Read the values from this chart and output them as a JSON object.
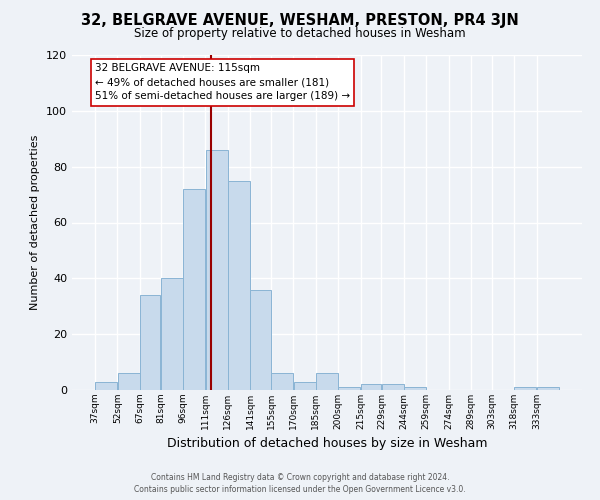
{
  "title": "32, BELGRAVE AVENUE, WESHAM, PRESTON, PR4 3JN",
  "subtitle": "Size of property relative to detached houses in Wesham",
  "xlabel": "Distribution of detached houses by size in Wesham",
  "ylabel": "Number of detached properties",
  "bar_color": "#c8daec",
  "bar_edge_color": "#8ab4d4",
  "background_color": "#eef2f7",
  "grid_color": "#ffffff",
  "vline_x": 115,
  "vline_color": "#990000",
  "categories": [
    "37sqm",
    "52sqm",
    "67sqm",
    "81sqm",
    "96sqm",
    "111sqm",
    "126sqm",
    "141sqm",
    "155sqm",
    "170sqm",
    "185sqm",
    "200sqm",
    "215sqm",
    "229sqm",
    "244sqm",
    "259sqm",
    "274sqm",
    "289sqm",
    "303sqm",
    "318sqm",
    "333sqm"
  ],
  "bin_edges": [
    37,
    52,
    67,
    81,
    96,
    111,
    126,
    141,
    155,
    170,
    185,
    200,
    215,
    229,
    244,
    259,
    274,
    289,
    303,
    318,
    333,
    348
  ],
  "values": [
    3,
    6,
    34,
    40,
    72,
    86,
    75,
    36,
    6,
    3,
    6,
    1,
    2,
    2,
    1,
    0,
    0,
    0,
    0,
    1,
    1
  ],
  "ylim": [
    0,
    120
  ],
  "yticks": [
    0,
    20,
    40,
    60,
    80,
    100,
    120
  ],
  "annotation_title": "32 BELGRAVE AVENUE: 115sqm",
  "annotation_line1": "← 49% of detached houses are smaller (181)",
  "annotation_line2": "51% of semi-detached houses are larger (189) →",
  "footer1": "Contains HM Land Registry data © Crown copyright and database right 2024.",
  "footer2": "Contains public sector information licensed under the Open Government Licence v3.0."
}
